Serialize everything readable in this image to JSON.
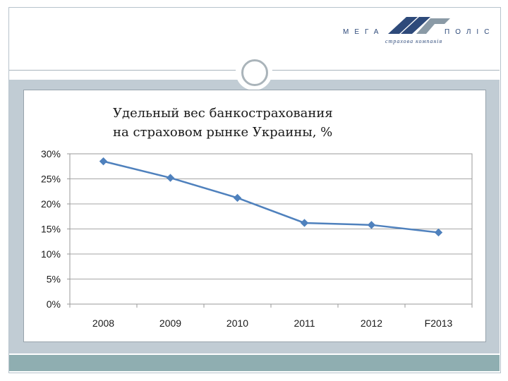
{
  "logo": {
    "left_text": "МЕГА",
    "right_text": "ПОЛІС",
    "subtitle": "страхова компанія",
    "colors": {
      "dark": "#2e4a7a",
      "gray": "#8a9aa6"
    }
  },
  "colors": {
    "content_band": "#c1ccd4",
    "footer_band": "#8faeb1",
    "series_line": "#4f81bd"
  },
  "chart_data": {
    "type": "line",
    "title": "Удельный вес банкострахования на страховом рынке Украины, %",
    "title_lines": [
      "Удельный вес банкострахования",
      "на страховом рынке Украины, %"
    ],
    "categories": [
      "2008",
      "2009",
      "2010",
      "2011",
      "2012",
      "F2013"
    ],
    "series": [
      {
        "values": [
          0.285,
          0.252,
          0.212,
          0.162,
          0.158,
          0.143
        ]
      }
    ],
    "ylim": [
      0,
      0.3
    ],
    "yticks": [
      0,
      0.05,
      0.1,
      0.15,
      0.2,
      0.25,
      0.3
    ],
    "ytick_labels": [
      "0%",
      "5%",
      "10%",
      "15%",
      "20%",
      "25%",
      "30%"
    ],
    "xlabel": "",
    "ylabel": "",
    "grid": true,
    "marker": "diamond",
    "legend": "none"
  }
}
